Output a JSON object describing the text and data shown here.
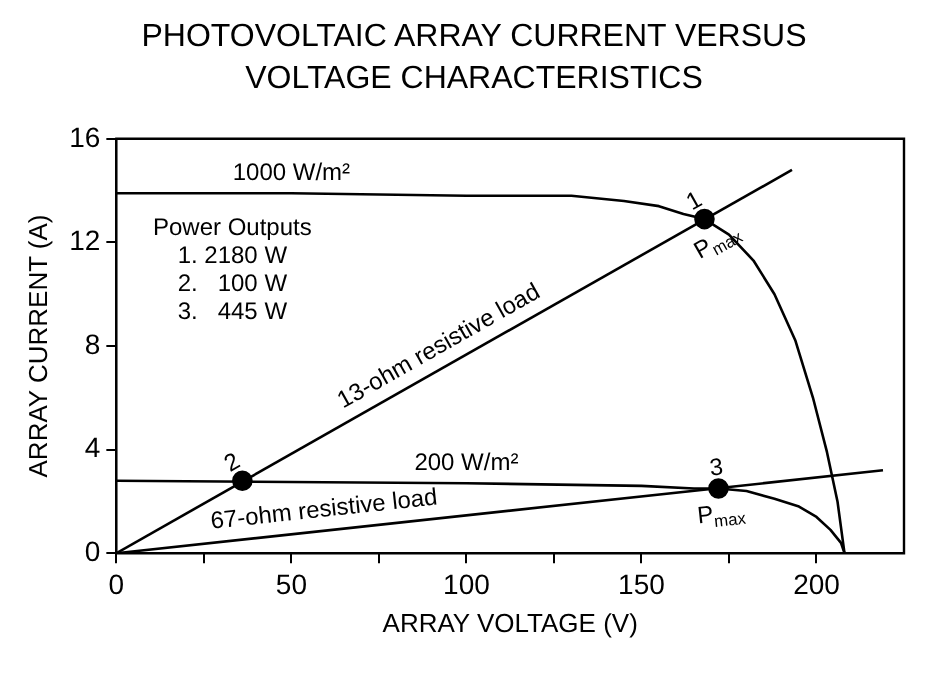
{
  "chart_data": {
    "type": "line",
    "title": "PHOTOVOLTAIC ARRAY CURRENT VERSUS VOLTAGE CHARACTERISTICS",
    "xlabel": "ARRAY VOLTAGE (V)",
    "ylabel": "ARRAY CURRENT (A)",
    "xlim": [
      0,
      225
    ],
    "xticks": [
      0,
      {
        "value": 25,
        "label": null
      },
      50,
      {
        "value": 75,
        "label": null
      },
      100,
      {
        "value": 125,
        "label": null
      },
      150,
      {
        "value": 175,
        "label": null
      },
      200
    ],
    "ylim": [
      0,
      16
    ],
    "yticks": [
      0,
      4,
      8,
      12,
      16
    ],
    "grid": false,
    "legend": false,
    "marker": "none",
    "line_style": "solid",
    "series": [
      {
        "color": "#000000",
        "x": [
          0,
          50,
          100,
          130,
          145,
          155,
          162,
          168,
          175,
          182,
          188,
          194,
          199,
          203,
          206,
          208
        ],
        "values": [
          13.9,
          13.9,
          13.8,
          13.8,
          13.6,
          13.4,
          13.1,
          12.9,
          12.3,
          11.3,
          10.0,
          8.2,
          6.0,
          3.9,
          2.0,
          0
        ]
      },
      {
        "color": "#000000",
        "x": [
          0,
          100,
          150,
          165,
          172,
          180,
          188,
          195,
          200,
          204,
          207,
          208
        ],
        "values": [
          2.8,
          2.7,
          2.6,
          2.5,
          2.5,
          2.4,
          2.1,
          1.8,
          1.4,
          0.9,
          0.4,
          0
        ]
      },
      {
        "color": "#000000",
        "x": [
          0,
          193
        ],
        "values": [
          0,
          14.8
        ]
      },
      {
        "color": "#000000",
        "x": [
          0,
          219
        ],
        "values": [
          0,
          3.2
        ]
      },
      {
        "type": "scatter",
        "marker": "circle",
        "color": "#000000",
        "x": [
          168,
          36,
          172
        ],
        "values": [
          12.9,
          2.8,
          2.5
        ]
      }
    ],
    "annotations": [
      {
        "text": "1000 W/m²",
        "x": 50,
        "y": 13.9
      },
      {
        "text": "200 W/m²",
        "x": 100,
        "y": 2.7
      },
      {
        "text": "13-ohm resistive load",
        "x": 95,
        "y": 7.3
      },
      {
        "text": "67-ohm resistive load",
        "x": 60,
        "y": 0.9
      },
      {
        "text": "1",
        "x": 168,
        "y": 12.9
      },
      {
        "text": "2",
        "x": 36,
        "y": 2.8
      },
      {
        "text": "3",
        "x": 172,
        "y": 2.5
      },
      {
        "text": "P$_{max}$",
        "x": 168,
        "y": 12.9
      },
      {
        "text": "P$_{max}$",
        "x": 172,
        "y": 2.5
      },
      "Power Outputs",
      "1. 2180 W",
      "2.   100 W",
      "3.   445 W"
    ]
  }
}
